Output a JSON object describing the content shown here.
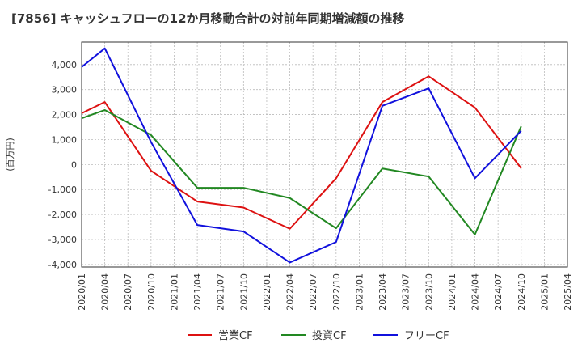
{
  "chart_data": {
    "type": "line",
    "title": "[7856]  キャッシュフローの12か月移動合計の対前年同期増減額の推移",
    "ylabel": "(百万円)",
    "xlabel": "",
    "ylim": [
      -4100,
      4900
    ],
    "yticks": [
      -4000,
      -3000,
      -2000,
      -1000,
      0,
      1000,
      2000,
      3000,
      4000
    ],
    "ytick_labels": [
      "-4,000",
      "-3,000",
      "-2,000",
      "-1,000",
      "0",
      "1,000",
      "2,000",
      "3,000",
      "4,000"
    ],
    "x_categories": [
      "2020/01",
      "2020/04",
      "2020/07",
      "2020/10",
      "2021/01",
      "2021/04",
      "2021/07",
      "2021/10",
      "2022/01",
      "2022/04",
      "2022/07",
      "2022/10",
      "2023/01",
      "2023/04",
      "2023/07",
      "2023/10",
      "2024/01",
      "2024/04",
      "2024/07",
      "2024/10",
      "2025/01",
      "2025/04"
    ],
    "grid": true,
    "legend_position": "bottom-center",
    "series": [
      {
        "name": "営業CF",
        "color": "#dd1111",
        "x": [
          "2020/01",
          "2020/04",
          "2020/10",
          "2021/04",
          "2021/10",
          "2022/04",
          "2022/10",
          "2023/04",
          "2023/10",
          "2024/04",
          "2024/10"
        ],
        "values": [
          2050,
          2500,
          -250,
          -1480,
          -1720,
          -2570,
          -550,
          2500,
          3530,
          2280,
          -150
        ]
      },
      {
        "name": "投資CF",
        "color": "#228822",
        "x": [
          "2020/01",
          "2020/04",
          "2020/10",
          "2021/04",
          "2021/10",
          "2022/04",
          "2022/10",
          "2023/04",
          "2023/10",
          "2024/04",
          "2024/10"
        ],
        "values": [
          1850,
          2180,
          1180,
          -930,
          -930,
          -1340,
          -2550,
          -160,
          -480,
          -2800,
          1530
        ]
      },
      {
        "name": "フリーCF",
        "color": "#1111dd",
        "x": [
          "2020/01",
          "2020/04",
          "2020/10",
          "2021/04",
          "2021/10",
          "2022/04",
          "2022/10",
          "2023/04",
          "2023/10",
          "2024/04",
          "2024/10"
        ],
        "values": [
          3900,
          4650,
          900,
          -2420,
          -2680,
          -3920,
          -3100,
          2350,
          3050,
          -550,
          1350
        ]
      }
    ]
  }
}
